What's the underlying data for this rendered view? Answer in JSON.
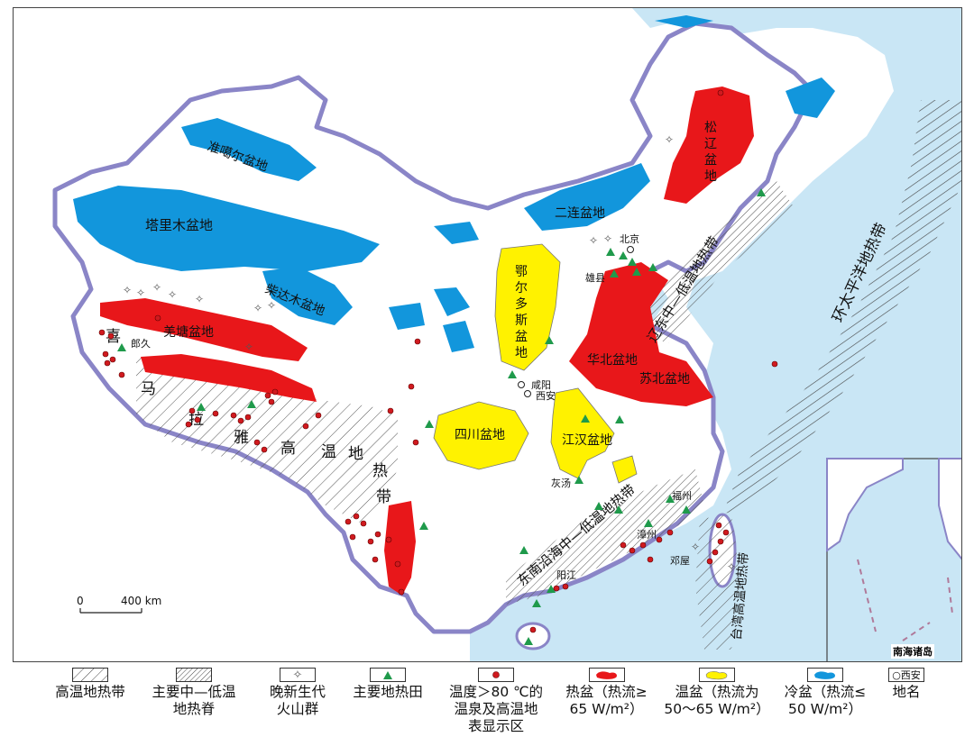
{
  "map": {
    "places": {
      "beijing": "北京",
      "xiongxian": "雄县",
      "xianyang": "咸阳",
      "xian": "西安",
      "langjiu": "郎久",
      "huitang": "灰汤",
      "fuzhou": "福州",
      "zhangzhou": "漳州",
      "dengwu": "邓屋",
      "yangjiang": "阳江"
    },
    "basins": {
      "junggar": "准噶尔盆地",
      "tarim": "塔里木盆地",
      "qaidam": "柴达木盆地",
      "erlian": "二连盆地",
      "songliao_1": "松",
      "songliao_2": "辽",
      "songliao_3": "盆",
      "songliao_4": "地",
      "ordos_1": "鄂",
      "ordos_2": "尔",
      "ordos_3": "多",
      "ordos_4": "斯",
      "ordos_5": "盆",
      "ordos_6": "地",
      "sichuan": "四川盆地",
      "jianghan": "江汉盆地",
      "huabei": "华北盆地",
      "subei": "苏北盆地",
      "qiangtang": "羌塘盆地"
    },
    "belts": {
      "him_1": "喜",
      "him_2": "马",
      "him_3": "拉",
      "him_4": "雅",
      "him_5": "高",
      "him_6": "温",
      "him_7": "地",
      "him_8": "热",
      "him_9": "带",
      "liaodong": "辽东中—低温地热带",
      "southeast": "东南沿海中—低温地热带",
      "taiwan": "台湾高温地热带",
      "pacific": "环太平洋地热带"
    },
    "scale": {
      "zero": "0",
      "max": "400 km"
    },
    "inset_title": "南海诸岛"
  },
  "legend": [
    {
      "text": "高温地热带",
      "symbol": "hatch-wide"
    },
    {
      "text": "主要中—低温\n地热脊",
      "symbol": "hatch-dense"
    },
    {
      "text": "晚新生代\n火山群",
      "symbol": "volcano"
    },
    {
      "text": "主要地热田",
      "symbol": "green-triangle"
    },
    {
      "text": "温度＞80 ℃的\n温泉及高温地\n表显示区",
      "symbol": "red-dot"
    },
    {
      "text": "热盆（热流≥\n65 W/m²）",
      "symbol": "red-blob"
    },
    {
      "text": "温盆（热流为\n50～65 W/m²）",
      "symbol": "yellow-blob"
    },
    {
      "text": "冷盆（热流≤\n50 W/m²）",
      "symbol": "blue-blob"
    },
    {
      "text": "地名",
      "symbol": "place",
      "symbol_label": "西安"
    }
  ],
  "colors": {
    "hot_basin": "#e8171a",
    "warm_basin": "#fff200",
    "cold_basin": "#1296dc",
    "sea": "#c9e6f5",
    "field": "#1f9a4b",
    "spring": "#d01a1f"
  }
}
